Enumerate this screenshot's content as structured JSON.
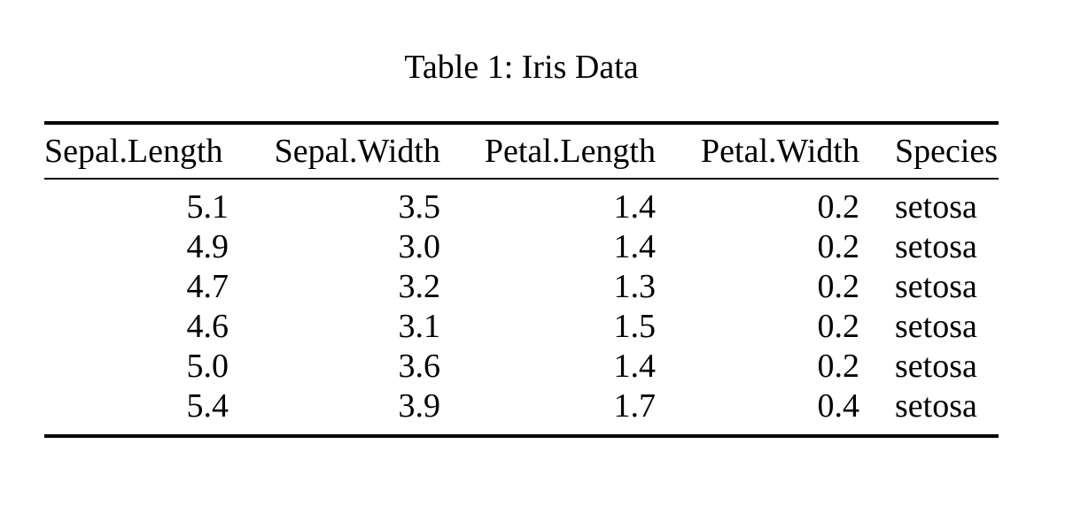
{
  "caption": "Table 1: Iris Data",
  "colors": {
    "background": "#ffffff",
    "text": "#000000",
    "rule": "#000000"
  },
  "table": {
    "columns": [
      {
        "key": "sepal-length",
        "label": "Sepal.Length",
        "align": "right"
      },
      {
        "key": "sepal-width",
        "label": "Sepal.Width",
        "align": "right"
      },
      {
        "key": "petal-length",
        "label": "Petal.Length",
        "align": "right"
      },
      {
        "key": "petal-width",
        "label": "Petal.Width",
        "align": "right"
      },
      {
        "key": "species",
        "label": "Species",
        "align": "left"
      }
    ],
    "rows": [
      [
        "5.1",
        "3.5",
        "1.4",
        "0.2",
        "setosa"
      ],
      [
        "4.9",
        "3.0",
        "1.4",
        "0.2",
        "setosa"
      ],
      [
        "4.7",
        "3.2",
        "1.3",
        "0.2",
        "setosa"
      ],
      [
        "4.6",
        "3.1",
        "1.5",
        "0.2",
        "setosa"
      ],
      [
        "5.0",
        "3.6",
        "1.4",
        "0.2",
        "setosa"
      ],
      [
        "5.4",
        "3.9",
        "1.7",
        "0.4",
        "setosa"
      ]
    ]
  },
  "chart_data": {
    "type": "table",
    "title": "Table 1: Iris Data",
    "categories": [
      "Sepal.Length",
      "Sepal.Width",
      "Petal.Length",
      "Petal.Width",
      "Species"
    ],
    "series": [
      {
        "name": "Sepal.Length",
        "values": [
          5.1,
          4.9,
          4.7,
          4.6,
          5.0,
          5.4
        ]
      },
      {
        "name": "Sepal.Width",
        "values": [
          3.5,
          3.0,
          3.2,
          3.1,
          3.6,
          3.9
        ]
      },
      {
        "name": "Petal.Length",
        "values": [
          1.4,
          1.4,
          1.3,
          1.5,
          1.4,
          1.7
        ]
      },
      {
        "name": "Petal.Width",
        "values": [
          0.2,
          0.2,
          0.2,
          0.2,
          0.2,
          0.4
        ]
      },
      {
        "name": "Species",
        "values": [
          "setosa",
          "setosa",
          "setosa",
          "setosa",
          "setosa",
          "setosa"
        ]
      }
    ]
  }
}
